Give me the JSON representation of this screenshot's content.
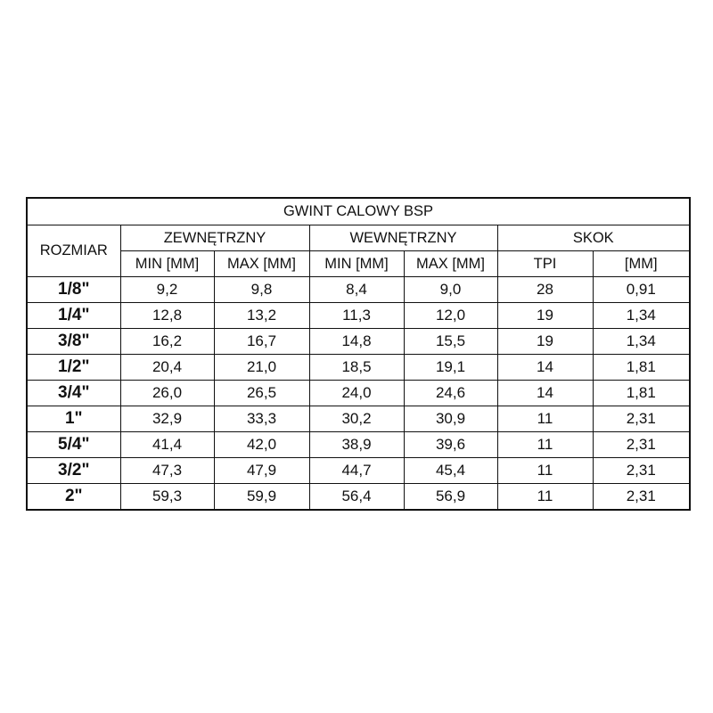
{
  "table": {
    "title": "GWINT CALOWY BSP",
    "size_header": "ROZMIAR",
    "groups": [
      "ZEWNĘTRZNY",
      "WEWNĘTRZNY",
      "SKOK"
    ],
    "subheaders": [
      "MIN [MM]",
      "MAX [MM]",
      "MIN [MM]",
      "MAX [MM]",
      "TPI",
      "[MM]"
    ],
    "rows": [
      [
        "1/8\"",
        "9,2",
        "9,8",
        "8,4",
        "9,0",
        "28",
        "0,91"
      ],
      [
        "1/4\"",
        "12,8",
        "13,2",
        "11,3",
        "12,0",
        "19",
        "1,34"
      ],
      [
        "3/8\"",
        "16,2",
        "16,7",
        "14,8",
        "15,5",
        "19",
        "1,34"
      ],
      [
        "1/2\"",
        "20,4",
        "21,0",
        "18,5",
        "19,1",
        "14",
        "1,81"
      ],
      [
        "3/4\"",
        "26,0",
        "26,5",
        "24,0",
        "24,6",
        "14",
        "1,81"
      ],
      [
        "1\"",
        "32,9",
        "33,3",
        "30,2",
        "30,9",
        "11",
        "2,31"
      ],
      [
        "5/4\"",
        "41,4",
        "42,0",
        "38,9",
        "39,6",
        "11",
        "2,31"
      ],
      [
        "3/2\"",
        "47,3",
        "47,9",
        "44,7",
        "45,4",
        "11",
        "2,31"
      ],
      [
        "2\"",
        "59,3",
        "59,9",
        "56,4",
        "56,9",
        "11",
        "2,31"
      ]
    ]
  }
}
